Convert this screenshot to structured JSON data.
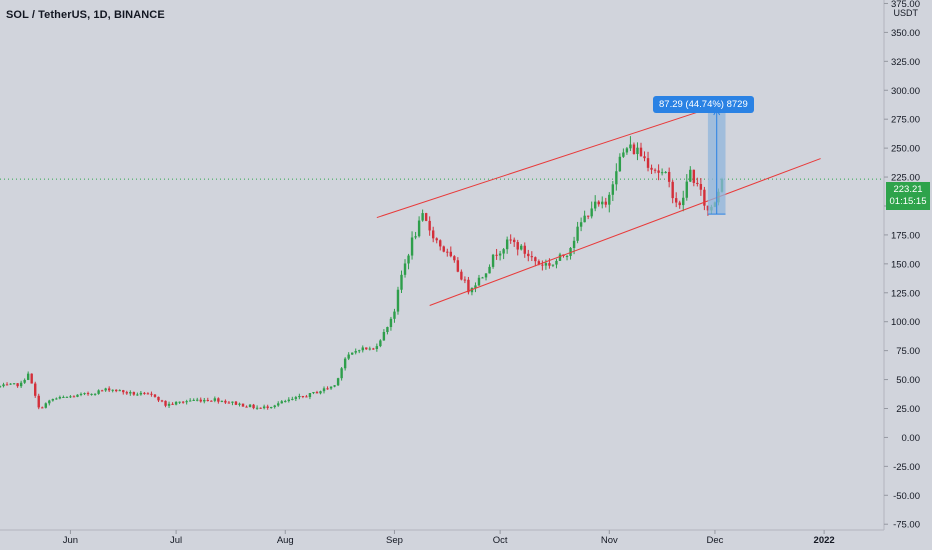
{
  "header": {
    "symbol": "SOL / TetherUS, 1D, BINANCE"
  },
  "axis": {
    "currency": "USDT"
  },
  "last_price": {
    "value": "223.21",
    "countdown": "01:15:15"
  },
  "measure": {
    "label": "87.29 (44.74%) 8729"
  },
  "colors": {
    "up": "#2e9e4b",
    "down": "#d32f3a",
    "channel": "#e83a3a",
    "measure_fill": "#8fb5dc",
    "measure_line": "#2a82e4",
    "badge": "#2ea34b",
    "background": "#d1d4dc"
  },
  "chart_data": {
    "type": "candlestick",
    "ylim": [
      -80,
      378
    ],
    "grid": false,
    "y_ticks": [
      "375.00",
      "350.00",
      "325.00",
      "300.00",
      "275.00",
      "250.00",
      "225.00",
      "200.00",
      "175.00",
      "150.00",
      "125.00",
      "100.00",
      "75.00",
      "50.00",
      "25.00",
      "0.00",
      "-25.00",
      "-50.00",
      "-75.00"
    ],
    "x_ticks": [
      "Jun",
      "Jul",
      "Aug",
      "Sep",
      "Oct",
      "Nov",
      "Dec",
      "2022"
    ],
    "x_tick_dates": [
      "2021-06-01",
      "2021-07-01",
      "2021-08-01",
      "2021-09-01",
      "2021-10-01",
      "2021-11-01",
      "2021-12-01",
      "2022-01-01"
    ],
    "x_range": [
      "2021-05-12",
      "2022-01-18"
    ],
    "close_anchors": [
      [
        "2021-05-12",
        44
      ],
      [
        "2021-05-18",
        46
      ],
      [
        "2021-05-20",
        56
      ],
      [
        "2021-05-23",
        25
      ],
      [
        "2021-05-27",
        33
      ],
      [
        "2021-06-05",
        37
      ],
      [
        "2021-06-12",
        42
      ],
      [
        "2021-06-18",
        38
      ],
      [
        "2021-06-25",
        36
      ],
      [
        "2021-06-28",
        28
      ],
      [
        "2021-07-05",
        32
      ],
      [
        "2021-07-12",
        33
      ],
      [
        "2021-07-20",
        28
      ],
      [
        "2021-07-25",
        25
      ],
      [
        "2021-08-01",
        31
      ],
      [
        "2021-08-08",
        37
      ],
      [
        "2021-08-15",
        45
      ],
      [
        "2021-08-18",
        68
      ],
      [
        "2021-08-22",
        77
      ],
      [
        "2021-08-26",
        76
      ],
      [
        "2021-08-29",
        90
      ],
      [
        "2021-09-01",
        110
      ],
      [
        "2021-09-03",
        140
      ],
      [
        "2021-09-06",
        170
      ],
      [
        "2021-09-09",
        190
      ],
      [
        "2021-09-13",
        170
      ],
      [
        "2021-09-18",
        150
      ],
      [
        "2021-09-22",
        128
      ],
      [
        "2021-09-26",
        140
      ],
      [
        "2021-09-30",
        160
      ],
      [
        "2021-10-04",
        170
      ],
      [
        "2021-10-08",
        160
      ],
      [
        "2021-10-12",
        150
      ],
      [
        "2021-10-16",
        150
      ],
      [
        "2021-10-20",
        160
      ],
      [
        "2021-10-24",
        185
      ],
      [
        "2021-10-27",
        200
      ],
      [
        "2021-10-31",
        200
      ],
      [
        "2021-11-03",
        235
      ],
      [
        "2021-11-06",
        250
      ],
      [
        "2021-11-09",
        248
      ],
      [
        "2021-11-13",
        235
      ],
      [
        "2021-11-17",
        225
      ],
      [
        "2021-11-21",
        198
      ],
      [
        "2021-11-24",
        230
      ],
      [
        "2021-11-27",
        210
      ],
      [
        "2021-11-29",
        195
      ],
      [
        "2021-12-01",
        205
      ],
      [
        "2021-12-03",
        223
      ]
    ],
    "channel_upper": [
      [
        "2021-08-27",
        190
      ],
      [
        "2021-11-28",
        283
      ]
    ],
    "channel_lower": [
      [
        "2021-09-11",
        114
      ],
      [
        "2021-12-31",
        241
      ]
    ],
    "last_price": 223.21,
    "measure": {
      "from_date": "2021-11-29",
      "to_date": "2021-12-04",
      "low": 193,
      "high": 283,
      "change": 87.29,
      "percent": 44.74,
      "ticks": 8729
    }
  }
}
